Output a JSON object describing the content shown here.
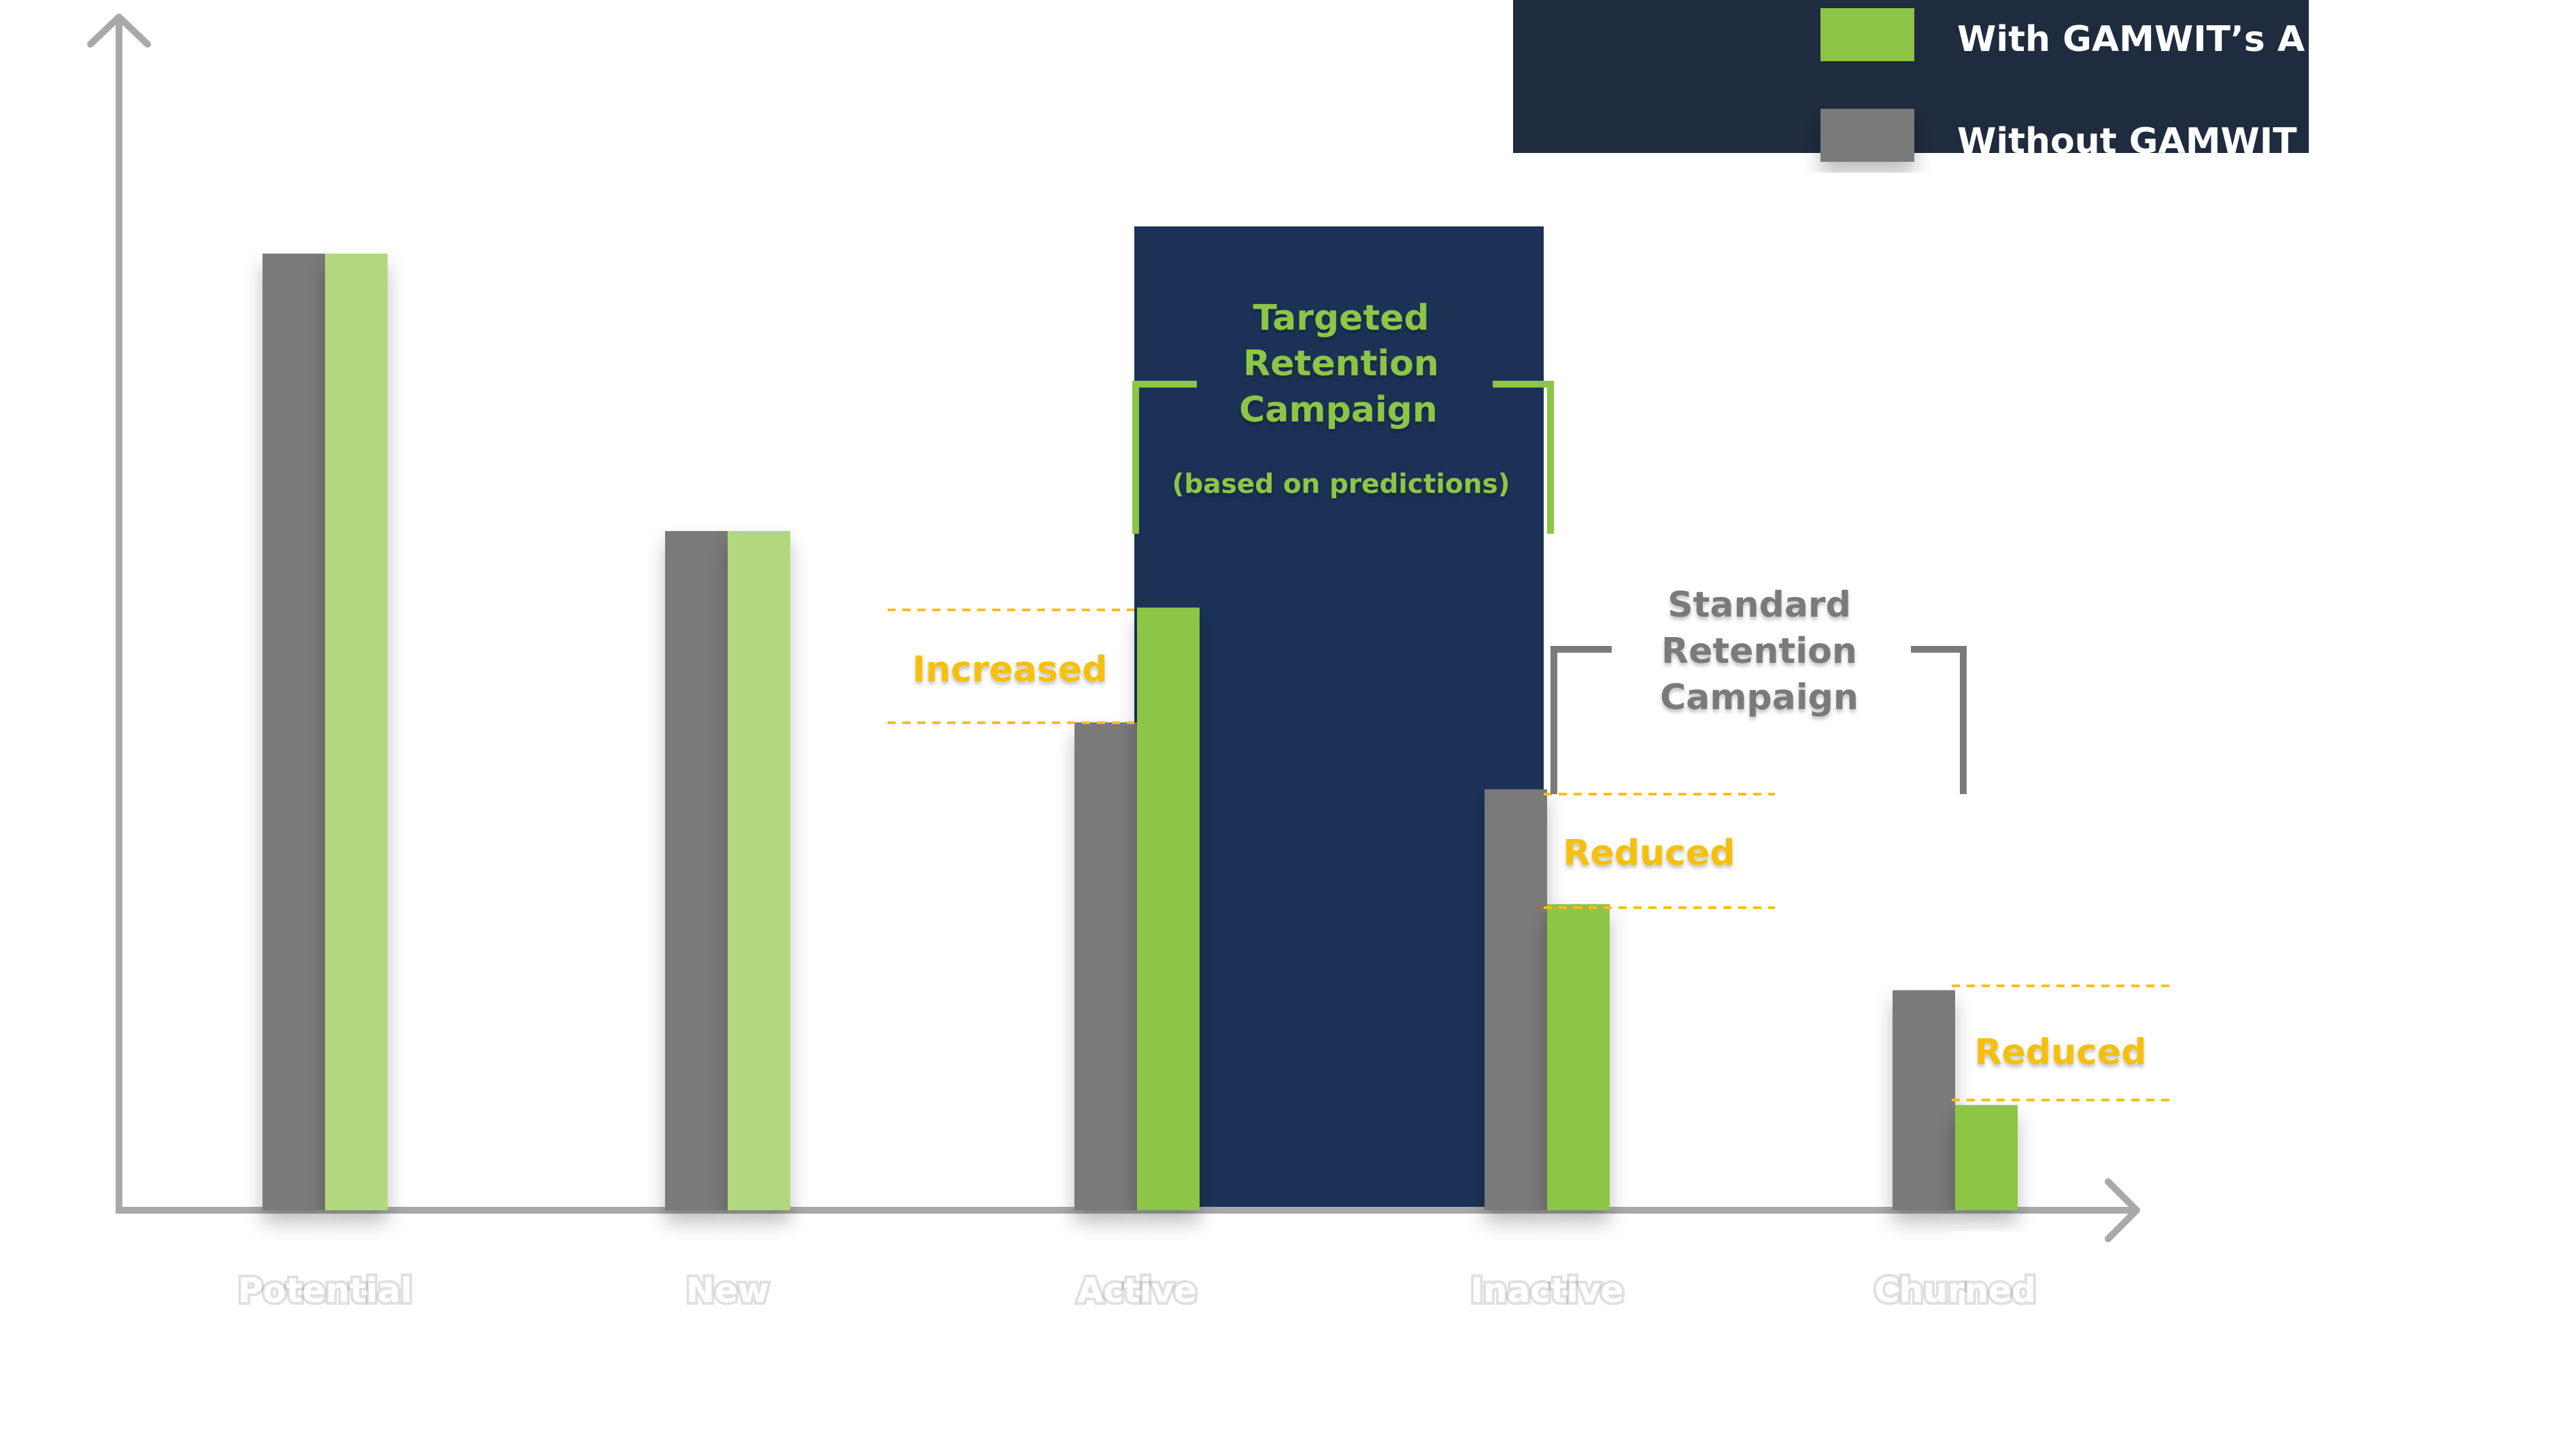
{
  "chart_data": {
    "type": "bar",
    "categories": [
      "Potential",
      "New",
      "Active",
      "Inactive",
      "Churned"
    ],
    "series": [
      {
        "name": "Without GAMWIT",
        "values": [
          100,
          71,
          51,
          44,
          23
        ]
      },
      {
        "name": "With GAMWIT’s A",
        "values": [
          100,
          71,
          63,
          32,
          11
        ]
      }
    ],
    "ylim": [
      0,
      100
    ],
    "xlabel": "",
    "ylabel": "",
    "grid": false,
    "legend": {
      "position": "top-right",
      "entries": [
        "With GAMWIT’s A",
        "Without GAMWIT"
      ]
    },
    "annotations": {
      "targeted_line1": "Targeted",
      "targeted_line2": "Retention",
      "targeted_line3": "Campaign",
      "targeted_note": "(based on predictions)",
      "standard_line1": "Standard",
      "standard_line2": "Retention",
      "standard_line3": "Campaign",
      "increased": "Increased",
      "reduced_inactive": "Reduced",
      "reduced_churned": "Reduced"
    }
  },
  "colors": {
    "without": "#7a7a7a",
    "with_pale": "#b2d87e",
    "with_bright": "#8dc546",
    "campaign_bg": "#1b3256",
    "legend_bg": "#1f2b3e",
    "axis": "#a9a9a9",
    "dashed": "#f5c010"
  }
}
